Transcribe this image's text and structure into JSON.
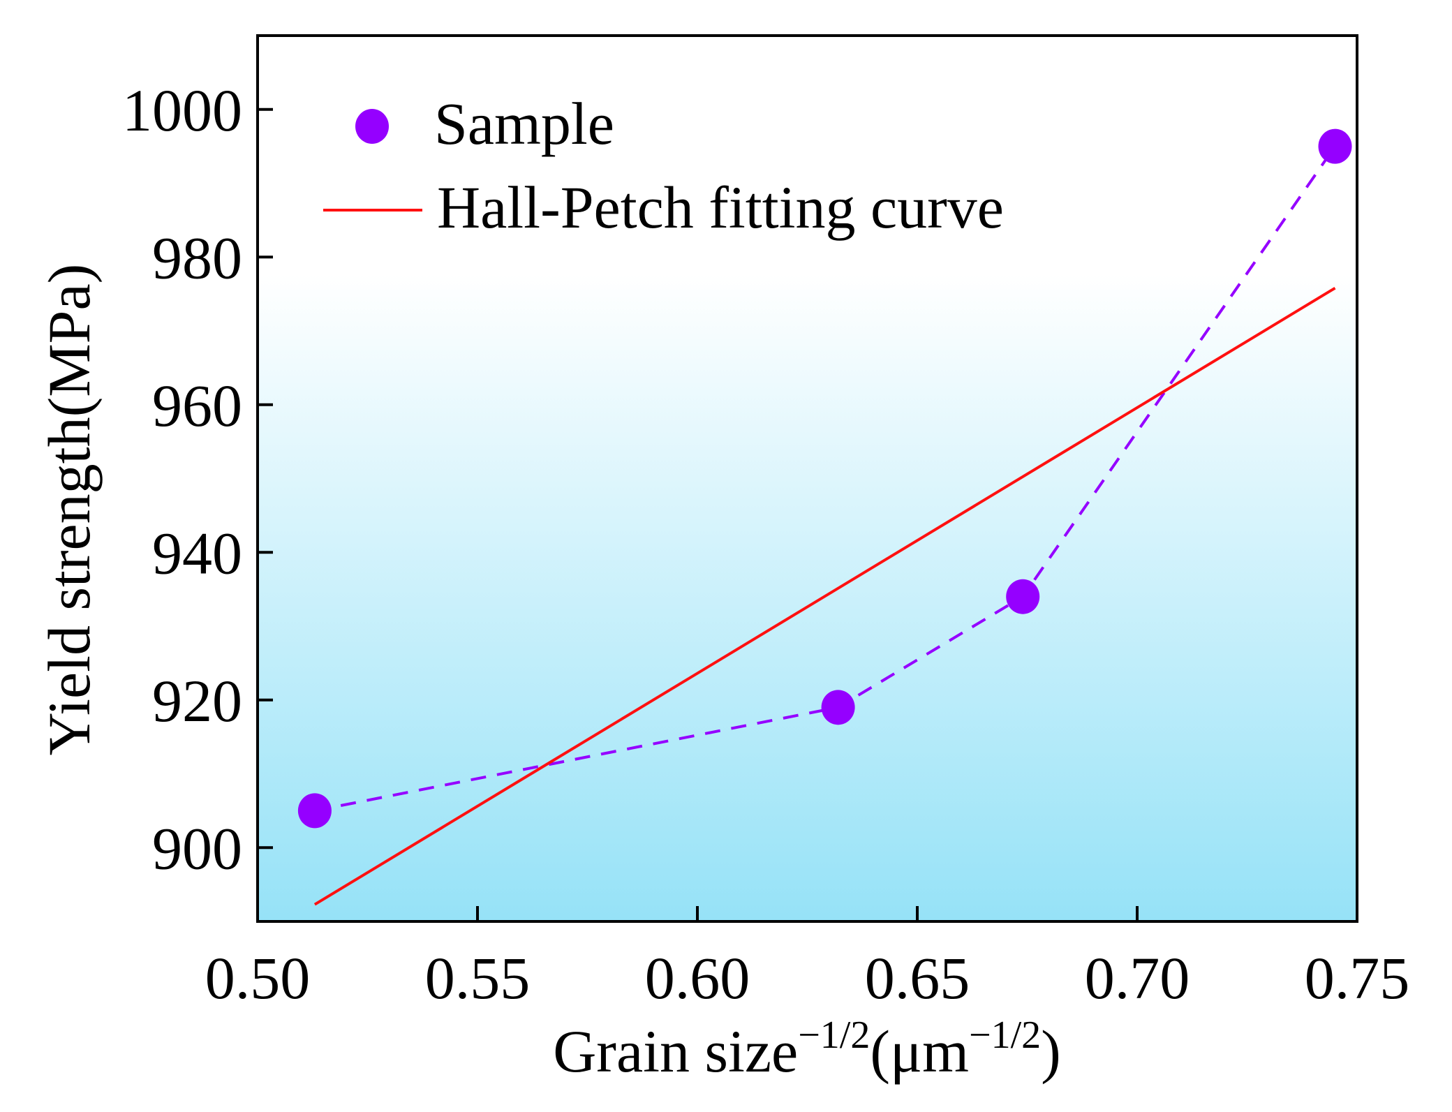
{
  "chart_data": {
    "type": "scatter",
    "title": "",
    "xlabel": "Grain size",
    "xlabel_sup": "−1/2",
    "xlabel_unit_open": "(μm",
    "xlabel_unit_sup": "−1/2",
    "xlabel_unit_close": ")",
    "ylabel": "Yield strength(MPa)",
    "xlim": [
      0.5,
      0.75
    ],
    "ylim": [
      890,
      1010
    ],
    "grid": false,
    "legend_position": "top-left",
    "xticks": [
      0.5,
      0.55,
      0.6,
      0.65,
      0.7,
      0.75
    ],
    "xtick_labels": [
      "0.50",
      "0.55",
      "0.60",
      "0.65",
      "0.70",
      "0.75"
    ],
    "yticks": [
      900,
      920,
      940,
      960,
      980,
      1000
    ],
    "ytick_labels": [
      "900",
      "920",
      "940",
      "960",
      "980",
      "1000"
    ],
    "series": [
      {
        "name": "Sample",
        "kind": "scatter-dashed",
        "color": "#9500ff",
        "x": [
          0.513,
          0.632,
          0.674,
          0.745
        ],
        "y": [
          905,
          919,
          934,
          995
        ]
      },
      {
        "name": "Hall-Petch fitting curve",
        "kind": "line",
        "color": "#ff1010",
        "x": [
          0.513,
          0.745
        ],
        "y": [
          892.3,
          975.8
        ]
      }
    ],
    "background_gradient": [
      "#ffffff",
      "#96e2f7"
    ]
  }
}
